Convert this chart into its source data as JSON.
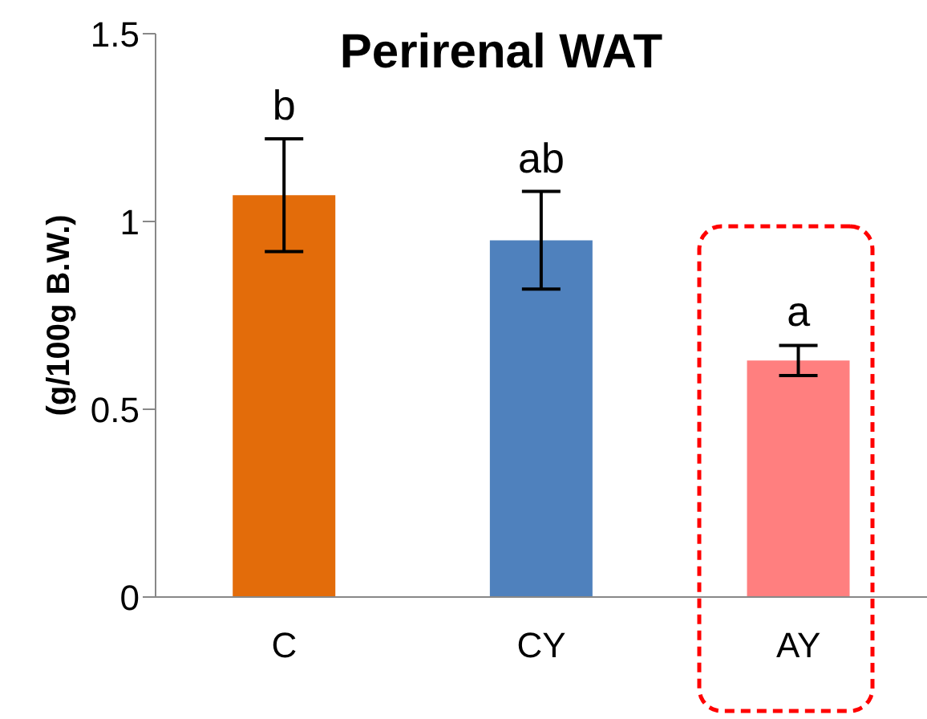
{
  "chart_data": {
    "type": "bar",
    "title": "Perirenal WAT",
    "ylabel": "(g/100g  B.W.)",
    "categories": [
      "C",
      "CY",
      "AY"
    ],
    "values": [
      1.07,
      0.95,
      0.63
    ],
    "colors": [
      "#e36c0a",
      "#4f81bd",
      "#ff7f7f"
    ],
    "errors": [
      0.15,
      0.13,
      0.04
    ],
    "ylim": [
      0,
      1.5
    ],
    "yticks": [
      0,
      0.5,
      1,
      1.5
    ],
    "grid": false,
    "legend": false,
    "annotations": [
      "b",
      "ab",
      "a"
    ]
  }
}
